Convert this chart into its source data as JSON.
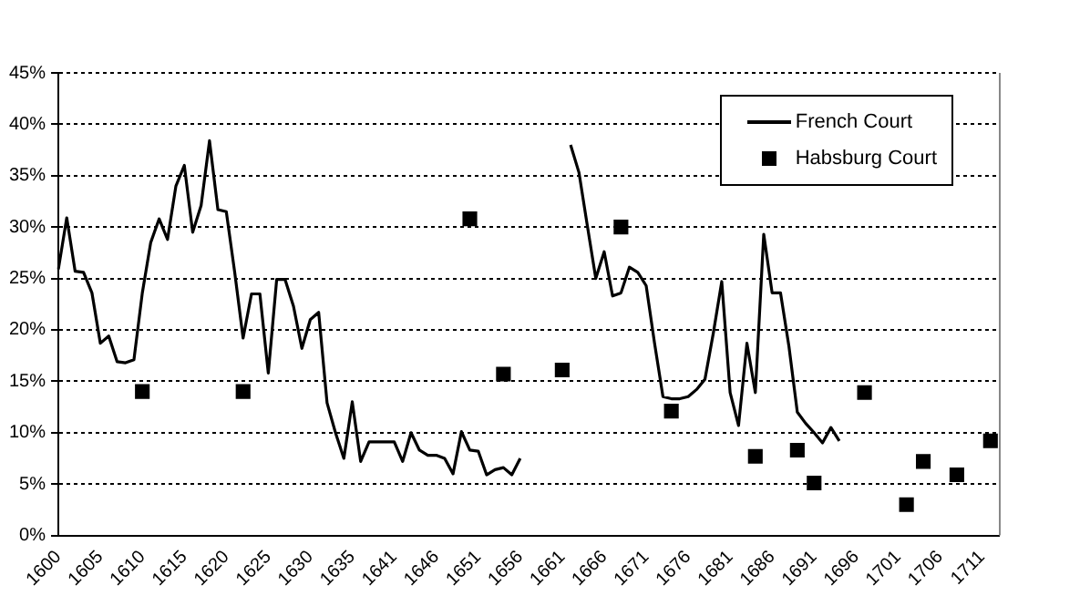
{
  "chart_data": {
    "type": "line",
    "categories": [
      "1600",
      null,
      null,
      null,
      null,
      "1605",
      null,
      null,
      null,
      null,
      "1610",
      null,
      null,
      null,
      null,
      "1615",
      null,
      null,
      null,
      null,
      "1620",
      null,
      null,
      null,
      null,
      "1625",
      null,
      null,
      null,
      null,
      "1630",
      null,
      null,
      null,
      null,
      "1635",
      null,
      null,
      null,
      null,
      "1641",
      null,
      null,
      null,
      null,
      "1646",
      null,
      null,
      null,
      null,
      "1651",
      null,
      null,
      null,
      null,
      "1656",
      null,
      null,
      null,
      null,
      "1661",
      null,
      null,
      null,
      null,
      "1666",
      null,
      null,
      null,
      null,
      "1671",
      null,
      null,
      null,
      null,
      "1676",
      null,
      null,
      null,
      null,
      "1681",
      null,
      null,
      null,
      null,
      "1686",
      null,
      null,
      null,
      null,
      "1691",
      null,
      null,
      null,
      null,
      "1696",
      null,
      null,
      null,
      null,
      "1701",
      null,
      null,
      null,
      null,
      "1706",
      null,
      null,
      null,
      null,
      "1711",
      null,
      null
    ],
    "series": [
      {
        "name": "French Court",
        "type": "line",
        "color": "#000000",
        "marker": "none",
        "values": [
          25.9,
          30.9,
          25.7,
          25.6,
          23.6,
          18.7,
          19.4,
          16.9,
          16.8,
          17.1,
          23.6,
          28.5,
          30.8,
          28.8,
          34.0,
          36.0,
          29.5,
          32.1,
          38.4,
          31.7,
          31.5,
          25.6,
          19.2,
          23.5,
          23.5,
          15.8,
          24.9,
          24.9,
          22.3,
          18.2,
          21.0,
          21.7,
          12.9,
          10.0,
          7.5,
          13.0,
          7.2,
          9.1,
          9.1,
          9.1,
          9.1,
          7.2,
          10.0,
          8.3,
          7.8,
          7.8,
          7.5,
          6.0,
          10.1,
          8.3,
          8.2,
          5.9,
          6.4,
          6.6,
          5.9,
          7.5,
          null,
          null,
          null,
          null,
          null,
          38.0,
          35.3,
          30.1,
          25.0,
          27.6,
          23.3,
          23.6,
          26.1,
          25.6,
          24.3,
          18.7,
          13.5,
          13.3,
          13.3,
          13.5,
          14.2,
          15.2,
          19.7,
          24.7,
          13.9,
          10.7,
          18.7,
          13.9,
          29.3,
          23.6,
          23.6,
          18.4,
          12.0,
          10.9,
          10.0,
          9.0,
          10.5,
          9.2,
          null,
          null,
          null,
          null,
          null,
          null,
          null,
          null,
          null,
          null,
          null,
          null,
          null,
          null,
          null,
          null,
          null,
          null,
          null
        ]
      },
      {
        "name": "Habsburg Court",
        "type": "scatter",
        "color": "#000000",
        "marker": "square",
        "values": [
          null,
          null,
          null,
          null,
          null,
          null,
          null,
          null,
          null,
          null,
          14.0,
          null,
          null,
          null,
          null,
          null,
          null,
          null,
          null,
          null,
          null,
          null,
          14.0,
          null,
          null,
          null,
          null,
          null,
          null,
          null,
          null,
          null,
          null,
          null,
          null,
          null,
          null,
          null,
          null,
          null,
          null,
          null,
          null,
          null,
          null,
          null,
          null,
          null,
          null,
          30.8,
          null,
          null,
          null,
          15.7,
          null,
          null,
          null,
          null,
          null,
          null,
          16.1,
          null,
          null,
          null,
          null,
          null,
          null,
          30.0,
          null,
          null,
          null,
          null,
          null,
          12.1,
          null,
          null,
          null,
          null,
          null,
          null,
          null,
          null,
          null,
          7.7,
          null,
          null,
          null,
          null,
          8.3,
          null,
          5.1,
          null,
          null,
          null,
          null,
          null,
          13.9,
          null,
          null,
          null,
          null,
          3.0,
          null,
          7.2,
          null,
          null,
          null,
          5.9,
          null,
          null,
          null,
          9.2,
          null
        ]
      }
    ],
    "ylim": [
      0,
      45
    ],
    "yticks": [
      {
        "value": 0,
        "label": "0%"
      },
      {
        "value": 5,
        "label": "5%"
      },
      {
        "value": 10,
        "label": "10%"
      },
      {
        "value": 15,
        "label": "15%"
      },
      {
        "value": 20,
        "label": "20%"
      },
      {
        "value": 25,
        "label": "25%"
      },
      {
        "value": 30,
        "label": "30%"
      },
      {
        "value": 35,
        "label": "35%"
      },
      {
        "value": 40,
        "label": "40%"
      },
      {
        "value": 45,
        "label": "45%"
      }
    ],
    "grid": "y",
    "legend": "top right"
  }
}
